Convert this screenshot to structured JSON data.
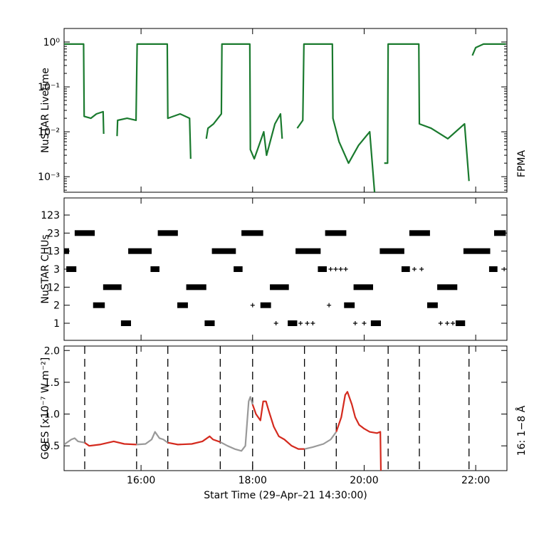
{
  "chart_data": [
    {
      "type": "line",
      "log_y": true,
      "y_label": "NuSTAR Livetime",
      "ylim": [
        0.00045,
        2
      ],
      "yticks": [
        {
          "value": 1,
          "label": "10⁰"
        },
        {
          "value": 0.1,
          "label": "10⁻¹"
        },
        {
          "value": 0.01,
          "label": "10⁻²"
        },
        {
          "value": 0.001,
          "label": "10⁻³"
        }
      ],
      "xlim": [
        14.62,
        22.56
      ],
      "xticks": [
        16,
        18,
        20,
        22
      ],
      "series": [
        {
          "name": "FPMA",
          "color": "#1a7a2e",
          "x": [
            14.62,
            14.97,
            14.98,
            15.1,
            15.2,
            15.32,
            15.33,
            null,
            15.57,
            15.58,
            15.75,
            15.91,
            15.93,
            16.47,
            16.48,
            16.7,
            16.87,
            16.89,
            null,
            17.17,
            17.2,
            17.3,
            17.44,
            17.45,
            17.95,
            17.96,
            18.03,
            18.2,
            18.25,
            18.4,
            18.5,
            18.53,
            null,
            18.8,
            18.9,
            18.92,
            19.43,
            19.44,
            19.55,
            19.72,
            19.9,
            20.1,
            20.19,
            null,
            20.36,
            20.42,
            20.43,
            20.98,
            20.99,
            21.2,
            21.5,
            21.8,
            21.88,
            null,
            21.94,
            22.0,
            22.14,
            22.54
          ],
          "values": [
            0.9,
            0.9,
            0.022,
            0.02,
            0.025,
            0.028,
            0.009,
            null,
            0.008,
            0.018,
            0.02,
            0.018,
            0.9,
            0.9,
            0.02,
            0.025,
            0.02,
            0.0025,
            null,
            0.007,
            0.012,
            0.015,
            0.025,
            0.9,
            0.9,
            0.004,
            0.0025,
            0.01,
            0.003,
            0.015,
            0.025,
            0.007,
            null,
            0.012,
            0.018,
            0.9,
            0.9,
            0.02,
            0.006,
            0.002,
            0.005,
            0.01,
            0.0004,
            null,
            0.002,
            0.002,
            0.9,
            0.9,
            0.015,
            0.012,
            0.007,
            0.015,
            0.0008,
            null,
            0.5,
            0.75,
            0.9,
            0.9
          ]
        }
      ]
    },
    {
      "type": "intervals",
      "y_label": "NuSTAR CHUs",
      "categories": [
        "1",
        "2",
        "12",
        "3",
        "13",
        "23",
        "123"
      ],
      "xlim": [
        14.62,
        22.56
      ],
      "xticks": [
        16,
        18,
        20,
        22
      ],
      "intervals": [
        {
          "chu": "23",
          "start": 14.81,
          "end": 15.17
        },
        {
          "chu": "23",
          "start": 16.3,
          "end": 16.66
        },
        {
          "chu": "23",
          "start": 17.8,
          "end": 18.19
        },
        {
          "chu": "23",
          "start": 19.3,
          "end": 19.68
        },
        {
          "chu": "23",
          "start": 20.81,
          "end": 21.18
        },
        {
          "chu": "23",
          "start": 22.33,
          "end": 22.54
        },
        {
          "chu": "13",
          "start": 14.62,
          "end": 14.71
        },
        {
          "chu": "13",
          "start": 15.77,
          "end": 16.19
        },
        {
          "chu": "13",
          "start": 17.27,
          "end": 17.7
        },
        {
          "chu": "13",
          "start": 18.77,
          "end": 19.22
        },
        {
          "chu": "13",
          "start": 20.28,
          "end": 20.72
        },
        {
          "chu": "13",
          "start": 21.78,
          "end": 22.26
        },
        {
          "chu": "3",
          "start": 14.66,
          "end": 14.84
        },
        {
          "chu": "3",
          "start": 16.17,
          "end": 16.33
        },
        {
          "chu": "3",
          "start": 17.66,
          "end": 17.82
        },
        {
          "chu": "3",
          "start": 19.17,
          "end": 19.33
        },
        {
          "chu": "3",
          "start": 20.67,
          "end": 20.82
        },
        {
          "chu": "3",
          "start": 22.24,
          "end": 22.39
        },
        {
          "chu": "12",
          "start": 15.32,
          "end": 15.65
        },
        {
          "chu": "12",
          "start": 16.81,
          "end": 17.17
        },
        {
          "chu": "12",
          "start": 18.31,
          "end": 18.65
        },
        {
          "chu": "12",
          "start": 19.81,
          "end": 20.16
        },
        {
          "chu": "12",
          "start": 21.31,
          "end": 21.67
        },
        {
          "chu": "2",
          "start": 15.14,
          "end": 15.35
        },
        {
          "chu": "2",
          "start": 16.65,
          "end": 16.84
        },
        {
          "chu": "2",
          "start": 18.14,
          "end": 18.33
        },
        {
          "chu": "2",
          "start": 19.64,
          "end": 19.83
        },
        {
          "chu": "2",
          "start": 21.13,
          "end": 21.32
        },
        {
          "chu": "1",
          "start": 15.64,
          "end": 15.82
        },
        {
          "chu": "1",
          "start": 17.14,
          "end": 17.32
        },
        {
          "chu": "1",
          "start": 18.63,
          "end": 18.8
        },
        {
          "chu": "1",
          "start": 20.12,
          "end": 20.3
        },
        {
          "chu": "1",
          "start": 21.64,
          "end": 21.81
        }
      ],
      "crosses": [
        {
          "chu": "3",
          "x": 19.4
        },
        {
          "chu": "3",
          "x": 19.49
        },
        {
          "chu": "3",
          "x": 19.58
        },
        {
          "chu": "3",
          "x": 19.67
        },
        {
          "chu": "3",
          "x": 20.9
        },
        {
          "chu": "3",
          "x": 21.03
        },
        {
          "chu": "3",
          "x": 22.51
        },
        {
          "chu": "2",
          "x": 18.0
        },
        {
          "chu": "2",
          "x": 19.37
        },
        {
          "chu": "1",
          "x": 18.42
        },
        {
          "chu": "1",
          "x": 18.86
        },
        {
          "chu": "1",
          "x": 18.98
        },
        {
          "chu": "1",
          "x": 19.08
        },
        {
          "chu": "1",
          "x": 19.84
        },
        {
          "chu": "1",
          "x": 20.0
        },
        {
          "chu": "1",
          "x": 21.37
        },
        {
          "chu": "1",
          "x": 21.49
        },
        {
          "chu": "1",
          "x": 21.59
        }
      ]
    },
    {
      "type": "line",
      "log_y": false,
      "y_label": "GOES [x10⁻⁷ W m⁻²]",
      "x_label": "Start Time (29–Apr–21 14:30:00)",
      "ylim": [
        0.11,
        2.07
      ],
      "yticks": [
        0.5,
        {
          "value": 1.0,
          "label": "1.0"
        },
        1.5,
        {
          "value": 2.0,
          "label": "2.0"
        }
      ],
      "xlim": [
        14.62,
        22.56
      ],
      "xticks": [
        {
          "value": 16,
          "label": "16:00"
        },
        {
          "value": 18,
          "label": "18:00"
        },
        {
          "value": 20,
          "label": "20:00"
        },
        {
          "value": 22,
          "label": "22:00"
        }
      ],
      "vlines": [
        14.99,
        15.92,
        16.48,
        17.42,
        18.0,
        18.93,
        19.5,
        20.43,
        20.99,
        21.88
      ],
      "series": [
        {
          "color": "#999999",
          "x": [
            14.62,
            14.75,
            14.81,
            14.87,
            14.99,
            null,
            15.92,
            16.08,
            16.19,
            16.25,
            16.33,
            16.4,
            16.48,
            null,
            17.42,
            17.55,
            17.68,
            17.8,
            17.87,
            17.93,
            17.96,
            18.0,
            null,
            18.93,
            19.08,
            19.27,
            19.4,
            19.5
          ],
          "values": [
            0.52,
            0.6,
            0.62,
            0.57,
            0.55,
            null,
            0.52,
            0.53,
            0.6,
            0.72,
            0.62,
            0.6,
            0.55,
            null,
            0.56,
            0.5,
            0.45,
            0.42,
            0.5,
            1.2,
            1.27,
            1.15,
            null,
            0.45,
            0.48,
            0.53,
            0.6,
            0.72
          ]
        },
        {
          "name": "16: 1−8 Å",
          "color": "#d42a1e",
          "x": [
            14.99,
            15.07,
            15.26,
            15.51,
            15.7,
            15.92,
            null,
            16.48,
            16.66,
            16.91,
            17.1,
            17.23,
            17.29,
            17.42,
            null,
            18.0,
            18.06,
            18.14,
            18.19,
            18.24,
            18.29,
            18.38,
            18.47,
            18.57,
            18.7,
            18.82,
            18.93,
            null,
            19.5,
            19.59,
            19.66,
            19.7,
            19.78,
            19.84,
            19.91,
            20.0,
            20.1,
            20.23,
            20.29,
            20.3
          ],
          "values": [
            0.55,
            0.5,
            0.52,
            0.57,
            0.53,
            0.52,
            null,
            0.55,
            0.52,
            0.53,
            0.57,
            0.65,
            0.6,
            0.56,
            null,
            1.15,
            1.0,
            0.9,
            1.2,
            1.2,
            1.05,
            0.8,
            0.65,
            0.6,
            0.5,
            0.45,
            0.45,
            null,
            0.72,
            0.95,
            1.3,
            1.35,
            1.15,
            0.95,
            0.83,
            0.77,
            0.72,
            0.7,
            0.72,
            0.11
          ]
        }
      ]
    }
  ]
}
